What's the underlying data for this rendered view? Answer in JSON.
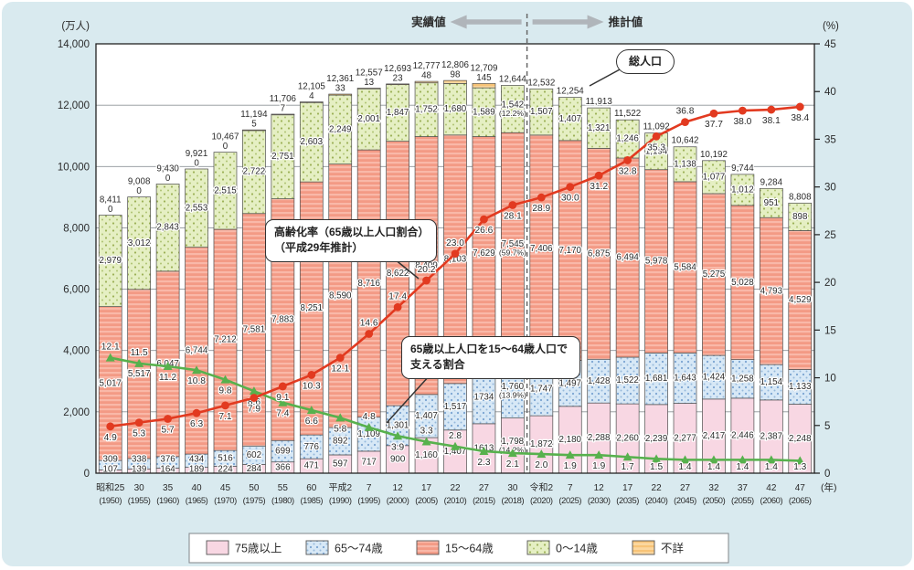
{
  "units": {
    "left": "(万人)",
    "right": "(%)",
    "year": "(年)"
  },
  "annotations": {
    "actual_label": "実績値",
    "projection_label": "推計値",
    "total_population": "総人口",
    "aging_rate_note": "高齢化率（65歳以上人口割合）（平成29年推計）",
    "support_ratio_note": "65歳以上人口を15～64歳人口で支える割合"
  },
  "legend": [
    {
      "label": "75歳以上",
      "swatch": "pink"
    },
    {
      "label": "65～74歳",
      "swatch": "blue-dots"
    },
    {
      "label": "15～64歳",
      "swatch": "salmon-stripes"
    },
    {
      "label": "0～14歳",
      "swatch": "green-dots"
    },
    {
      "label": "不詳",
      "swatch": "orange-stripes"
    }
  ],
  "colors": {
    "panel_bg": "#d9eaef",
    "plot_bg": "#ffffff",
    "grid": "#8d9398",
    "pink": "#f8d7e3",
    "blue_bg": "#d7e8f6",
    "blue_dot": "#7aa4d1",
    "salmon_base": "#f39a85",
    "salmon_stripe": "#f9b8a8",
    "green_bg": "#e5efc3",
    "green_dot": "#9cb257",
    "orange_base": "#f7c377",
    "orange_stripe": "#fbd79f",
    "aging_line": "#e23a20",
    "support_line": "#57b14d",
    "divider": "#666666",
    "arrow": "#b0b5ba",
    "segment_border": "#4d4d4d"
  },
  "chart_data": {
    "type": "bar",
    "subtype": "stacked-bars-with-two-percent-lines",
    "categories_era": [
      "昭和25",
      "30",
      "35",
      "40",
      "45",
      "50",
      "55",
      "60",
      "平成2",
      "7",
      "12",
      "17",
      "22",
      "27",
      "30",
      "令和2",
      "7",
      "12",
      "17",
      "22",
      "27",
      "32",
      "37",
      "42",
      "47"
    ],
    "categories_year": [
      "(1950)",
      "(1955)",
      "(1960)",
      "(1965)",
      "(1970)",
      "(1975)",
      "(1980)",
      "(1985)",
      "(1990)",
      "(1995)",
      "(2000)",
      "(2005)",
      "(2010)",
      "(2015)",
      "(2018)",
      "(2020)",
      "(2025)",
      "(2030)",
      "(2035)",
      "(2040)",
      "(2045)",
      "(2050)",
      "(2055)",
      "(2060)",
      "(2065)"
    ],
    "actual_through_index": 14,
    "left_axis": {
      "range": [
        0,
        14000
      ],
      "ticks": [
        0,
        2000,
        4000,
        6000,
        8000,
        10000,
        12000,
        14000
      ],
      "tick_labels": [
        "0",
        "2,000",
        "4,000",
        "6,000",
        "8,000",
        "10,000",
        "12,000",
        "14,000"
      ]
    },
    "right_axis": {
      "range": [
        0,
        45
      ],
      "ticks": [
        0,
        5,
        10,
        15,
        20,
        25,
        30,
        35,
        40,
        45
      ],
      "tick_labels": [
        "0",
        "5",
        "10",
        "15",
        "20",
        "25",
        "30",
        "35",
        "40",
        "45"
      ]
    },
    "series": [
      {
        "name": "75歳以上",
        "swatch": "pink",
        "values": [
          107,
          139,
          164,
          189,
          224,
          284,
          366,
          471,
          597,
          717,
          900,
          1160,
          1407,
          1613,
          1798,
          1872,
          2180,
          2288,
          2260,
          2239,
          2277,
          2417,
          2446,
          2387,
          2248
        ],
        "labels": [
          "107",
          "139",
          "164",
          "189",
          "224",
          "284",
          "366",
          "471",
          "597",
          "717",
          "900",
          "1,160",
          "1,407",
          "1613",
          "1,798\n(14.2%)",
          "1,872",
          "2,180",
          "2,288",
          "2,260",
          "2,239",
          "2,277",
          "2,417",
          "2,446",
          "2,387",
          "2,248"
        ]
      },
      {
        "name": "65～74歳",
        "swatch": "blue-dots",
        "values": [
          309,
          338,
          376,
          434,
          516,
          602,
          699,
          776,
          892,
          1109,
          1301,
          1407,
          1517,
          1734,
          1760,
          1747,
          1497,
          1428,
          1522,
          1681,
          1643,
          1424,
          1258,
          1154,
          1133
        ],
        "labels": [
          "309",
          "338",
          "376",
          "434",
          "516",
          "602",
          "699",
          "776",
          "892",
          "1,109",
          "1,301",
          "1,407",
          "1,517",
          "1734",
          "1,760\n(13.9%)",
          "1,747",
          "1,497",
          "1,428",
          "1,522",
          "1,681",
          "1,643",
          "1,424",
          "1,258",
          "1,154",
          "1,133"
        ]
      },
      {
        "name": "15～64歳",
        "swatch": "salmon-stripes",
        "values": [
          5017,
          5517,
          6047,
          6744,
          7212,
          7581,
          7883,
          8251,
          8590,
          8716,
          8622,
          8409,
          8103,
          7629,
          7545,
          7406,
          7170,
          6875,
          6494,
          5978,
          5584,
          5275,
          5028,
          4793,
          4529
        ],
        "labels": [
          "5,017",
          "5,517",
          "6,047",
          "6,744",
          "7,212",
          "7,581",
          "7,883",
          "8,251",
          "8,590",
          "8,716",
          "8,622",
          "8,409",
          "8,103",
          "7,629",
          "7,545\n(59.7%)",
          "7,406",
          "7,170",
          "6,875",
          "6,494",
          "5,978",
          "5,584",
          "5,275",
          "5,028",
          "4,793",
          "4,529"
        ]
      },
      {
        "name": "0～14歳",
        "swatch": "green-dots",
        "values": [
          2979,
          3012,
          2843,
          2553,
          2515,
          2722,
          2751,
          2603,
          2249,
          2001,
          1847,
          1752,
          1680,
          1589,
          1542,
          1507,
          1407,
          1321,
          1246,
          1194,
          1138,
          1077,
          1012,
          951,
          898
        ],
        "labels": [
          "2,979",
          "3,012",
          "2,843",
          "2,553",
          "2,515",
          "2,722",
          "2,751",
          "2,603",
          "2,249",
          "2,001",
          "1,847",
          "1,752",
          "1,680",
          "1,589",
          "1,542\n(12.2%)",
          "1,507",
          "1,407",
          "1,321",
          "1,246",
          "1,194",
          "1,138",
          "1,077",
          "1,012",
          "951",
          "898"
        ]
      },
      {
        "name": "不詳",
        "swatch": "orange-stripes",
        "values": [
          0,
          0,
          0,
          0,
          0,
          5,
          7,
          4,
          33,
          13,
          23,
          48,
          98,
          145,
          0,
          0,
          0,
          0,
          0,
          0,
          0,
          0,
          0,
          0,
          0
        ],
        "labels": [
          "0",
          "0",
          "0",
          "0",
          "0",
          "5",
          "7",
          "4",
          "33",
          "13",
          "23",
          "48",
          "98",
          "145",
          "",
          "",
          "",
          "",
          "",
          "",
          "",
          "",
          "",
          "",
          ""
        ]
      }
    ],
    "totals": {
      "values": [
        8411,
        9008,
        9430,
        9921,
        10467,
        11194,
        11706,
        12105,
        12361,
        12557,
        12693,
        12777,
        12806,
        12709,
        12644,
        12532,
        12254,
        11913,
        11522,
        11092,
        10642,
        10192,
        9744,
        9284,
        8808
      ],
      "labels": [
        "8,411",
        "9,008",
        "9,430",
        "9,921",
        "10,467",
        "11,194",
        "11,706",
        "12,105",
        "12,361",
        "12,557",
        "12,693",
        "12,777",
        "12,806",
        "12,709",
        "12,644",
        "12,532",
        "12,254",
        "11,913",
        "11,522",
        "11,092",
        "10,642",
        "10,192",
        "9,744",
        "9,284",
        "8,808"
      ]
    },
    "lines": [
      {
        "name": "高齢化率（65歳以上人口割合）",
        "axis": "right",
        "color_key": "aging_line",
        "marker": "circle",
        "values": [
          4.9,
          5.3,
          5.7,
          6.3,
          7.1,
          7.9,
          9.1,
          10.3,
          12.1,
          14.6,
          17.4,
          20.2,
          23.0,
          26.6,
          28.1,
          28.9,
          30.0,
          31.2,
          32.8,
          35.3,
          36.8,
          37.7,
          38.0,
          38.1,
          38.4
        ],
        "labels": [
          "4.9",
          "5.3",
          "5.7",
          "6.3",
          "7.1",
          "7.9",
          "9.1",
          "10.3",
          "12.1",
          "14.6",
          "17.4",
          "20.2",
          "23.0",
          "26.6",
          "28.1",
          "28.9",
          "30.0",
          "31.2",
          "32.8",
          "35.3",
          "36.8",
          "37.7",
          "38.0",
          "38.1",
          "38.4"
        ]
      },
      {
        "name": "65歳以上人口を15～64歳人口で支える割合",
        "axis": "right",
        "color_key": "support_line",
        "marker": "triangle",
        "values": [
          12.1,
          11.5,
          11.2,
          10.8,
          9.8,
          8.6,
          7.4,
          6.6,
          5.8,
          4.8,
          3.9,
          3.3,
          2.8,
          2.3,
          2.1,
          2.0,
          1.9,
          1.9,
          1.7,
          1.5,
          1.4,
          1.4,
          1.4,
          1.4,
          1.3
        ],
        "labels": [
          "12.1",
          "11.5",
          "11.2",
          "10.8",
          "9.8",
          "8.6",
          "7.4",
          "6.6",
          "5.8",
          "4.8",
          "3.9",
          "3.3",
          "2.8",
          "2.3",
          "2.1",
          "2.0",
          "1.9",
          "1.9",
          "1.7",
          "1.5",
          "1.4",
          "1.4",
          "1.4",
          "1.4",
          "1.3"
        ]
      }
    ]
  }
}
